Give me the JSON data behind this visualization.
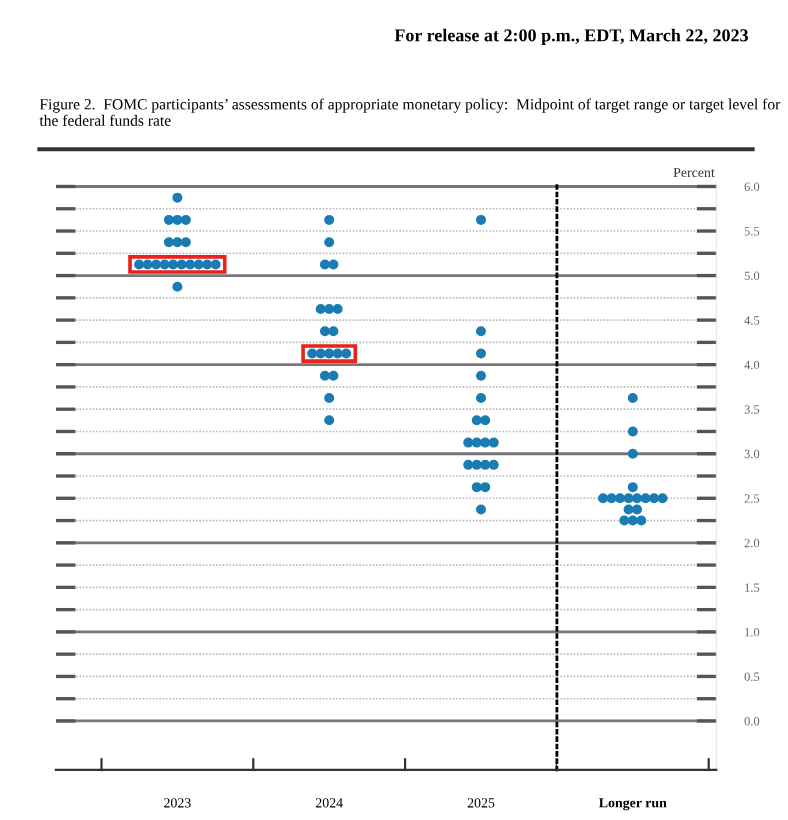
{
  "chart_data": [
    {
      "type": "scatter",
      "title": "Figure 2.  FOMC participants’ assessments of appropriate monetary policy:  Midpoint of target range or target level for the federal funds rate",
      "annotations": [
        "For release at 2:00 p.m., EDT, March 22, 2023"
      ],
      "categories": [
        "2023",
        "2024",
        "2025"
      ],
      "series": [
        {
          "color": "#1b7bb3",
          "values": [
            5.875,
            5.625,
            5.625
          ]
        },
        {
          "color": "#1b7bb3",
          "values": [
            5.625,
            5.375,
            4.375
          ]
        },
        {
          "color": "#1b7bb3",
          "values": [
            5.625,
            5.125,
            4.125
          ]
        },
        {
          "color": "#1b7bb3",
          "values": [
            5.625,
            5.125,
            3.875
          ]
        },
        {
          "color": "#1b7bb3",
          "values": [
            5.375,
            4.625,
            3.625
          ]
        },
        {
          "color": "#1b7bb3",
          "values": [
            5.375,
            4.625,
            3.375
          ]
        },
        {
          "color": "#1b7bb3",
          "values": [
            5.375,
            4.625,
            3.375
          ]
        },
        {
          "color": "#1b7bb3",
          "values": [
            5.125,
            4.375,
            3.125
          ]
        },
        {
          "color": "#1b7bb3",
          "values": [
            5.125,
            4.375,
            3.125
          ]
        },
        {
          "color": "#1b7bb3",
          "values": [
            5.125,
            4.125,
            3.125
          ]
        },
        {
          "color": "#1b7bb3",
          "values": [
            5.125,
            4.125,
            3.125
          ]
        },
        {
          "color": "#1b7bb3",
          "values": [
            5.125,
            4.125,
            2.875
          ]
        },
        {
          "color": "#1b7bb3",
          "values": [
            5.125,
            4.125,
            2.875
          ]
        },
        {
          "color": "#1b7bb3",
          "values": [
            5.125,
            4.125,
            2.875
          ]
        },
        {
          "color": "#1b7bb3",
          "values": [
            5.125,
            3.875,
            2.875
          ]
        },
        {
          "color": "#1b7bb3",
          "values": [
            5.125,
            3.875,
            2.625
          ]
        },
        {
          "color": "#1b7bb3",
          "values": [
            5.125,
            3.625,
            2.625
          ]
        },
        {
          "color": "#1b7bb3",
          "values": [
            4.875,
            3.375,
            2.375
          ]
        }
      ],
      "ylim": [
        -0.55,
        6.05
      ],
      "yticks": [
        0,
        0.25,
        0.5,
        0.75,
        1,
        1.25,
        1.5,
        1.75,
        2,
        2.25,
        2.5,
        2.75,
        3,
        3.25,
        3.5,
        3.75,
        4,
        4.25,
        4.5,
        4.75,
        5,
        5.25,
        5.5,
        5.75,
        6
      ],
      "tick_labels": "x",
      "grid": "y",
      "marker": "circle"
    },
    {
      "type": "scatter",
      "ylabel": "Percent",
      "categories": [
        "Longer run"
      ],
      "series": [
        {
          "color": "#1b7bb3",
          "values": [
            3.625
          ]
        },
        {
          "color": "#1b7bb3",
          "values": [
            3.25
          ]
        },
        {
          "color": "#1b7bb3",
          "values": [
            3.0
          ]
        },
        {
          "color": "#1b7bb3",
          "values": [
            2.625
          ]
        },
        {
          "color": "#1b7bb3",
          "values": [
            2.5
          ]
        },
        {
          "color": "#1b7bb3",
          "values": [
            2.5
          ]
        },
        {
          "color": "#1b7bb3",
          "values": [
            2.5
          ]
        },
        {
          "color": "#1b7bb3",
          "values": [
            2.5
          ]
        },
        {
          "color": "#1b7bb3",
          "values": [
            2.5
          ]
        },
        {
          "color": "#1b7bb3",
          "values": [
            2.5
          ]
        },
        {
          "color": "#1b7bb3",
          "values": [
            2.5
          ]
        },
        {
          "color": "#1b7bb3",
          "values": [
            2.5
          ]
        },
        {
          "color": "#1b7bb3",
          "values": [
            2.375
          ]
        },
        {
          "color": "#1b7bb3",
          "values": [
            2.375
          ]
        },
        {
          "color": "#1b7bb3",
          "values": [
            2.25
          ]
        },
        {
          "color": "#1b7bb3",
          "values": [
            2.25
          ]
        },
        {
          "color": "#1b7bb3",
          "values": [
            2.25
          ]
        }
      ],
      "ylim": [
        -0.55,
        6.05
      ],
      "yticks": [
        {
          "value": 0.0,
          "label": "0.0"
        },
        {
          "value": 0.25,
          "label": null
        },
        {
          "value": 0.5,
          "label": "0.5"
        },
        {
          "value": 0.75,
          "label": null
        },
        {
          "value": 1.0,
          "label": "1.0"
        },
        {
          "value": 1.25,
          "label": null
        },
        {
          "value": 1.5,
          "label": "1.5"
        },
        {
          "value": 1.75,
          "label": null
        },
        {
          "value": 2.0,
          "label": "2.0"
        },
        {
          "value": 2.25,
          "label": null
        },
        {
          "value": 2.5,
          "label": "2.5"
        },
        {
          "value": 2.75,
          "label": null
        },
        {
          "value": 3.0,
          "label": "3.0"
        },
        {
          "value": 3.25,
          "label": null
        },
        {
          "value": 3.5,
          "label": "3.5"
        },
        {
          "value": 3.75,
          "label": null
        },
        {
          "value": 4.0,
          "label": "4.0"
        },
        {
          "value": 4.25,
          "label": null
        },
        {
          "value": 4.5,
          "label": "4.5"
        },
        {
          "value": 4.75,
          "label": null
        },
        {
          "value": 5.0,
          "label": "5.0"
        },
        {
          "value": 5.25,
          "label": null
        },
        {
          "value": 5.5,
          "label": "5.5"
        },
        {
          "value": 5.75,
          "label": null
        },
        {
          "value": 6.0,
          "label": "6.0"
        }
      ],
      "grid": "y",
      "marker": "circle"
    }
  ]
}
